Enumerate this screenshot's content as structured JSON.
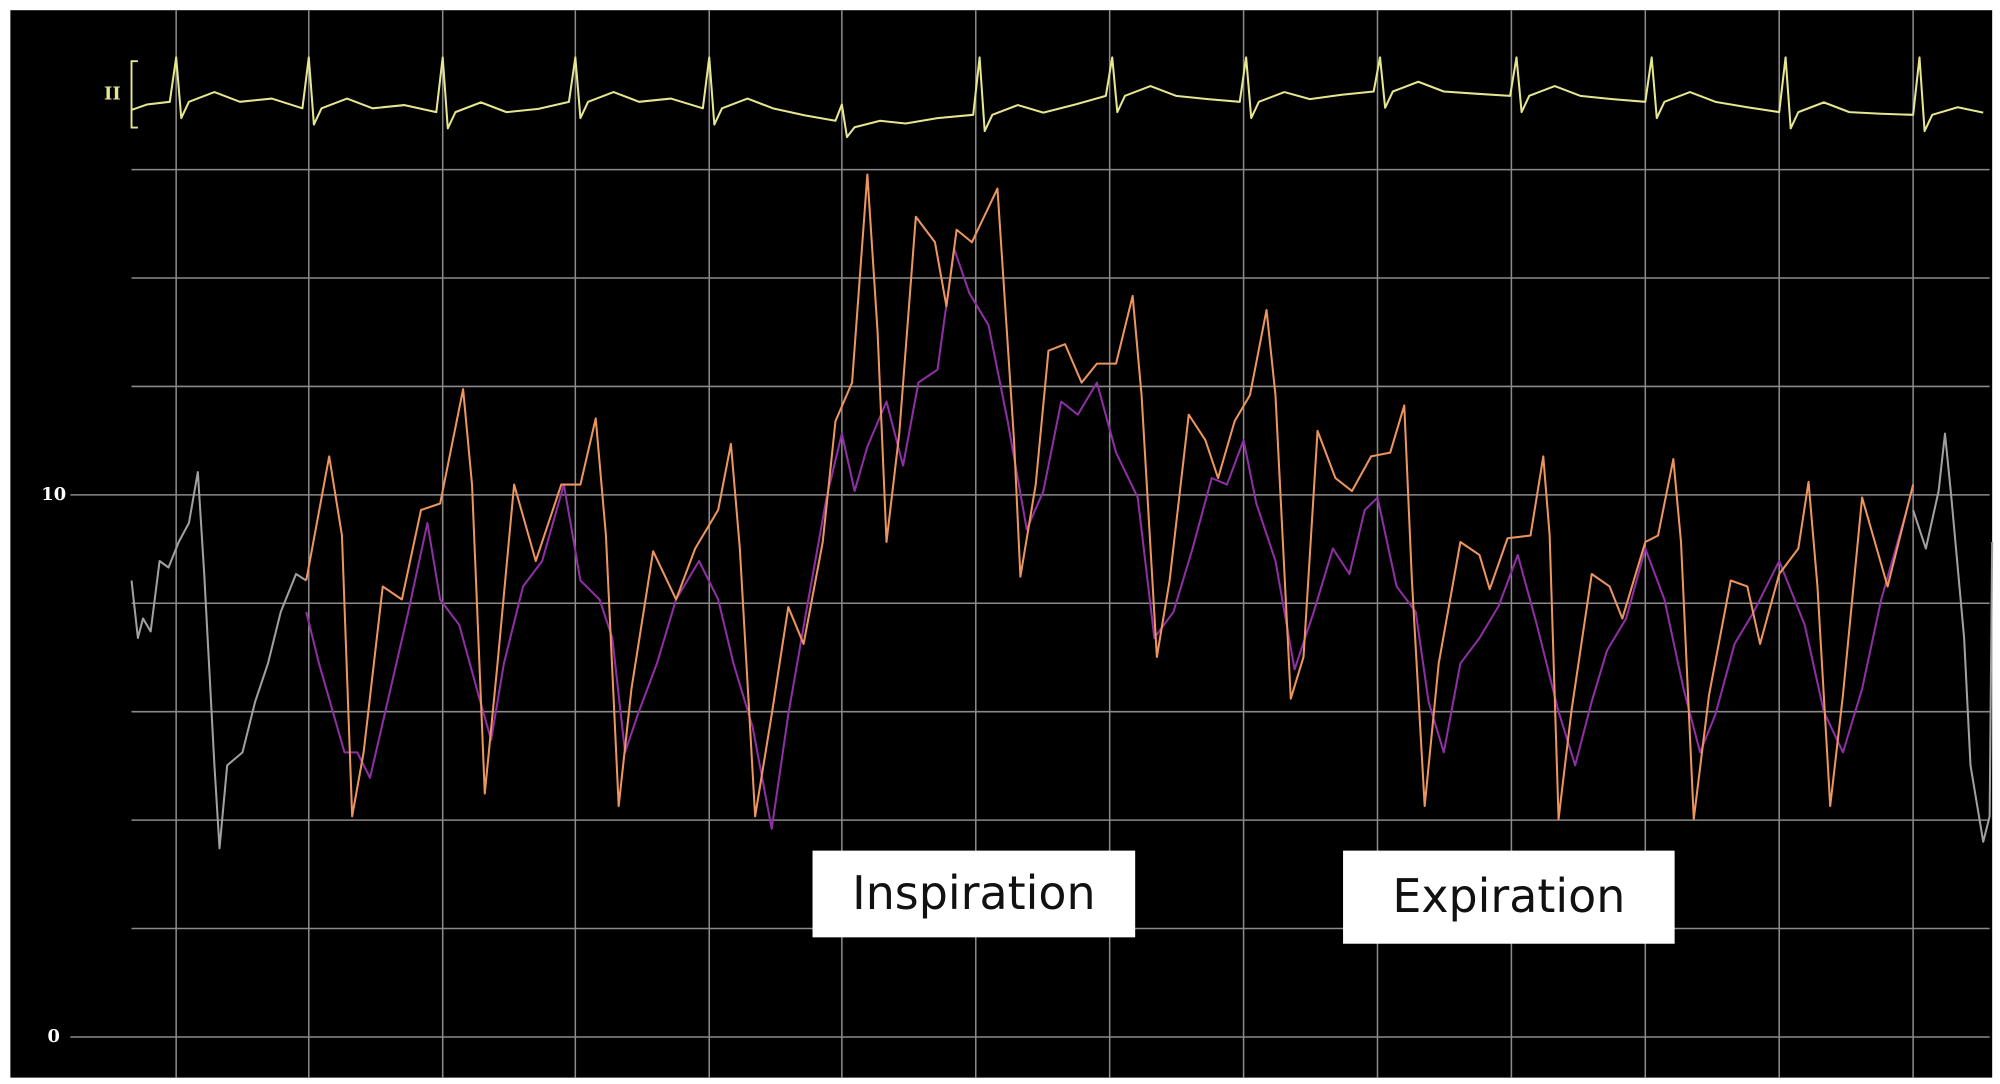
{
  "chart_data": {
    "type": "line",
    "lead_label": "II",
    "annotations": [
      "Inspiration",
      "Expiration"
    ],
    "xlim": [
      103,
      1562
    ],
    "ylim": [
      -0.75,
      18.94
    ],
    "yticks": [
      0,
      10
    ],
    "ygrid": [
      0,
      2,
      4,
      6,
      8,
      10,
      12,
      14,
      16
    ],
    "xgrid": [
      138,
      242,
      347,
      451,
      556,
      660,
      765,
      870,
      975,
      1080,
      1185,
      1290,
      1395,
      1500
    ],
    "grid": true,
    "series": [
      {
        "color": "#e6e690",
        "x": [
          103,
          115,
          133,
          138,
          142,
          148,
          168,
          188,
          213,
          237,
          242,
          246,
          252,
          272,
          292,
          317,
          342,
          347,
          351,
          357,
          377,
          397,
          422,
          446,
          451,
          455,
          461,
          481,
          501,
          526,
          551,
          556,
          560,
          566,
          586,
          606,
          631,
          655,
          660,
          664,
          670,
          690,
          710,
          735,
          763,
          768,
          772,
          778,
          798,
          818,
          843,
          867,
          872,
          876,
          882,
          902,
          922,
          947,
          972,
          977,
          981,
          987,
          1007,
          1027,
          1052,
          1077,
          1082,
          1086,
          1092,
          1112,
          1132,
          1157,
          1184,
          1189,
          1193,
          1199,
          1219,
          1239,
          1264,
          1290,
          1295,
          1299,
          1305,
          1325,
          1345,
          1370,
          1395,
          1400,
          1404,
          1410,
          1430,
          1450,
          1475,
          1500,
          1505,
          1509,
          1515,
          1535,
          1555
        ],
        "values": [
          17.1,
          17.2,
          17.25,
          18.07,
          16.95,
          17.25,
          17.43,
          17.25,
          17.31,
          17.13,
          18.07,
          16.83,
          17.13,
          17.31,
          17.13,
          17.19,
          17.06,
          18.07,
          16.76,
          17.06,
          17.24,
          17.06,
          17.12,
          17.25,
          18.07,
          16.95,
          17.25,
          17.43,
          17.25,
          17.31,
          17.13,
          18.07,
          16.83,
          17.13,
          17.31,
          17.13,
          17.0,
          16.9,
          17.2,
          16.6,
          16.78,
          16.9,
          16.85,
          16.95,
          17.01,
          18.07,
          16.71,
          17.01,
          17.19,
          17.05,
          17.2,
          17.36,
          18.07,
          17.06,
          17.36,
          17.54,
          17.36,
          17.3,
          17.25,
          18.07,
          16.95,
          17.25,
          17.43,
          17.3,
          17.38,
          17.44,
          18.07,
          17.14,
          17.44,
          17.62,
          17.44,
          17.4,
          17.36,
          18.07,
          17.06,
          17.36,
          17.54,
          17.36,
          17.3,
          17.25,
          18.07,
          16.95,
          17.25,
          17.43,
          17.25,
          17.15,
          17.06,
          18.07,
          16.76,
          17.06,
          17.24,
          17.06,
          17.03,
          17.01,
          18.07,
          16.71,
          17.01,
          17.15,
          17.05
        ]
      },
      {
        "color": "#a0a0a0",
        "x": [
          103,
          108,
          112,
          118,
          125,
          132,
          140,
          148,
          155,
          160,
          168,
          172,
          178,
          190,
          200,
          210,
          220,
          232,
          240
        ],
        "values": [
          8.42,
          7.36,
          7.72,
          7.48,
          8.78,
          8.66,
          9.13,
          9.48,
          10.42,
          8.54,
          5.01,
          3.48,
          5.01,
          5.25,
          6.19,
          6.89,
          7.84,
          8.54,
          8.42
        ]
      },
      {
        "color": "#a0a0a0",
        "x": [
          1500,
          1510,
          1520,
          1525,
          1530,
          1540,
          1545,
          1555,
          1560,
          1562
        ],
        "values": [
          9.72,
          9.01,
          10.07,
          11.13,
          9.95,
          7.36,
          5.01,
          3.6,
          4.07,
          9.13
        ]
      },
      {
        "color": "#8e2fa3",
        "x": [
          240,
          250,
          270,
          280,
          290,
          305,
          320,
          335,
          345,
          360,
          375,
          385,
          395,
          410,
          425,
          442,
          455,
          470,
          480,
          490,
          500,
          515,
          530,
          548,
          563,
          575,
          590,
          605,
          618,
          632,
          648,
          660,
          670,
          680,
          695,
          708,
          720,
          735,
          748,
          760,
          775,
          790,
          805,
          818,
          832,
          845,
          860,
          875,
          892,
          905,
          920,
          935,
          950,
          962,
          975,
          985,
          1000,
          1015,
          1030,
          1045,
          1058,
          1070,
          1080,
          1095,
          1110,
          1120,
          1132,
          1145,
          1160,
          1175,
          1190,
          1205,
          1222,
          1235,
          1248,
          1260,
          1275,
          1290,
          1305,
          1320,
          1333,
          1345,
          1360,
          1375,
          1395,
          1415,
          1430,
          1445,
          1460,
          1475,
          1495
        ],
        "values": [
          7.84,
          6.89,
          5.25,
          5.25,
          4.78,
          6.31,
          7.84,
          9.48,
          8.07,
          7.6,
          6.31,
          5.48,
          6.89,
          8.31,
          8.78,
          10.19,
          8.42,
          8.07,
          7.36,
          5.25,
          5.95,
          6.89,
          8.07,
          8.78,
          8.07,
          6.89,
          5.72,
          3.84,
          5.95,
          7.84,
          9.95,
          11.13,
          10.07,
          10.89,
          11.72,
          10.54,
          12.07,
          12.31,
          14.54,
          13.72,
          13.13,
          11.36,
          9.36,
          10.07,
          11.72,
          11.48,
          12.07,
          10.78,
          9.95,
          7.36,
          7.84,
          9.01,
          10.31,
          10.19,
          11.01,
          9.84,
          8.78,
          6.78,
          7.84,
          9.01,
          8.54,
          9.72,
          9.95,
          8.31,
          7.84,
          6.19,
          5.25,
          6.89,
          7.36,
          7.95,
          8.89,
          7.6,
          6.0,
          5.01,
          6.19,
          7.13,
          7.72,
          9.01,
          8.07,
          6.42,
          5.25,
          5.95,
          7.25,
          7.84,
          8.78,
          7.6,
          6.0,
          5.25,
          6.42,
          8.07,
          9.72
        ]
      },
      {
        "color": "#ec955e",
        "x": [
          240,
          258,
          268,
          276,
          285,
          300,
          315,
          330,
          345,
          363,
          370,
          380,
          390,
          403,
          420,
          440,
          455,
          467,
          475,
          485,
          495,
          512,
          530,
          545,
          563,
          573,
          580,
          592,
          605,
          618,
          630,
          645,
          655,
          668,
          680,
          688,
          695,
          705,
          718,
          733,
          742,
          750,
          762,
          782,
          795,
          800,
          812,
          822,
          835,
          848,
          860,
          875,
          888,
          895,
          907,
          917,
          932,
          945,
          955,
          968,
          980,
          993,
          1000,
          1012,
          1022,
          1033,
          1047,
          1060,
          1075,
          1090,
          1101,
          1107,
          1117,
          1128,
          1145,
          1160,
          1168,
          1182,
          1200,
          1210,
          1215,
          1222,
          1232,
          1248,
          1262,
          1272,
          1290,
          1300,
          1312,
          1318,
          1328,
          1340,
          1357,
          1370,
          1380,
          1395,
          1410,
          1418,
          1425,
          1435,
          1445,
          1460,
          1480,
          1500
        ],
        "values": [
          8.42,
          10.71,
          9.25,
          4.07,
          5.25,
          8.31,
          8.07,
          9.72,
          9.84,
          11.95,
          10.19,
          4.49,
          6.89,
          10.19,
          8.78,
          10.19,
          10.19,
          11.41,
          9.25,
          4.26,
          6.42,
          8.96,
          8.07,
          9.01,
          9.72,
          10.94,
          9.01,
          4.07,
          5.95,
          7.93,
          7.25,
          9.13,
          11.36,
          12.07,
          15.91,
          13.01,
          9.13,
          11.13,
          15.13,
          14.66,
          13.48,
          14.89,
          14.66,
          15.65,
          11.01,
          8.49,
          10.19,
          12.66,
          12.78,
          12.07,
          12.42,
          12.42,
          13.67,
          11.84,
          7.01,
          8.42,
          11.48,
          11.01,
          10.31,
          11.36,
          11.84,
          13.41,
          11.84,
          6.24,
          7.01,
          11.18,
          10.31,
          10.07,
          10.71,
          10.78,
          11.65,
          8.42,
          4.26,
          6.89,
          9.13,
          8.89,
          8.26,
          9.2,
          9.25,
          10.71,
          9.25,
          4.02,
          6.0,
          8.54,
          8.31,
          7.72,
          9.13,
          9.25,
          10.66,
          9.13,
          4.02,
          6.31,
          8.42,
          8.31,
          7.25,
          8.54,
          9.01,
          10.24,
          8.31,
          4.26,
          6.31,
          9.95,
          8.31,
          10.19
        ]
      }
    ]
  }
}
